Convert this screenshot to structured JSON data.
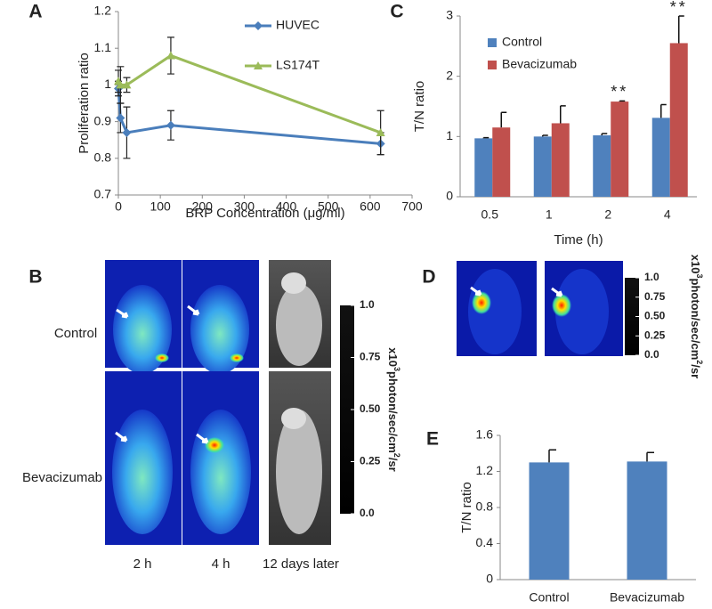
{
  "chart_data": [
    {
      "type": "line",
      "panel": "A",
      "x_label": "BRP Concentration (μg/ml)",
      "y_label": "Proliferation ratio",
      "xlim": [
        0,
        700
      ],
      "xticks": [
        0,
        100,
        200,
        300,
        400,
        500,
        600,
        700
      ],
      "ylim": [
        0.7,
        1.2
      ],
      "yticks": [
        0.7,
        0.8,
        0.9,
        1,
        1.1,
        1.2
      ],
      "series": [
        {
          "name": "HUVEC",
          "color": "#4a7ebb",
          "marker": "diamond",
          "x": [
            0,
            5,
            20,
            125,
            625
          ],
          "values": [
            0.99,
            0.91,
            0.87,
            0.89,
            0.84
          ],
          "errors": [
            0.02,
            0.04,
            0.07,
            0.04,
            0.03
          ]
        },
        {
          "name": "LS174T",
          "color": "#9bbb59",
          "marker": "triangle",
          "x": [
            0,
            5,
            20,
            125,
            625
          ],
          "values": [
            1.01,
            1.0,
            1.0,
            1.08,
            0.87
          ],
          "errors": [
            0.03,
            0.05,
            0.02,
            0.05,
            0.06
          ]
        }
      ]
    },
    {
      "type": "bar",
      "panel": "C",
      "x_label": "Time (h)",
      "y_label": "T/N ratio",
      "categories": [
        "0.5",
        "1",
        "2",
        "4"
      ],
      "ylim": [
        0,
        3
      ],
      "yticks": [
        0,
        1,
        2,
        3
      ],
      "series": [
        {
          "name": "Control",
          "color": "#4f81bd",
          "values": [
            0.97,
            1.0,
            1.02,
            1.31
          ],
          "errors": [
            0.01,
            0.02,
            0.03,
            0.22
          ]
        },
        {
          "name": "Bevacizumab",
          "color": "#c0504d",
          "values": [
            1.15,
            1.22,
            1.58,
            2.55
          ],
          "errors": [
            0.25,
            0.29,
            0.01,
            0.45
          ],
          "significance": [
            null,
            null,
            "**",
            "**"
          ]
        }
      ]
    },
    {
      "type": "bar",
      "panel": "E",
      "y_label": "T/N ratio",
      "categories": [
        "Control",
        "Bevacizumab"
      ],
      "ylim": [
        0,
        1.6
      ],
      "yticks": [
        0,
        0.4,
        0.8,
        1.2,
        1.6
      ],
      "series": [
        {
          "color": "#4f81bd",
          "values": [
            1.3,
            1.31
          ],
          "errors": [
            0.14,
            0.1
          ]
        }
      ]
    }
  ],
  "imaging": {
    "panel_b": {
      "panel": "B",
      "rows": [
        "Control",
        "Bevacizumab"
      ],
      "columns": [
        "2 h",
        "4 h",
        "12 days later"
      ]
    },
    "panel_d": {
      "panel": "D"
    },
    "colorbar_ticks": [
      {
        "value": 1,
        "label": "1.0"
      },
      {
        "value": 0.75,
        "label": "0.75"
      },
      {
        "value": 0.5,
        "label": "0.50"
      },
      {
        "value": 0.25,
        "label": "0.25"
      },
      {
        "value": 0,
        "label": "0.0"
      }
    ],
    "colorbar_label": [
      "x10",
      "3",
      "photon/sec/cm",
      "2",
      "/sr"
    ]
  }
}
